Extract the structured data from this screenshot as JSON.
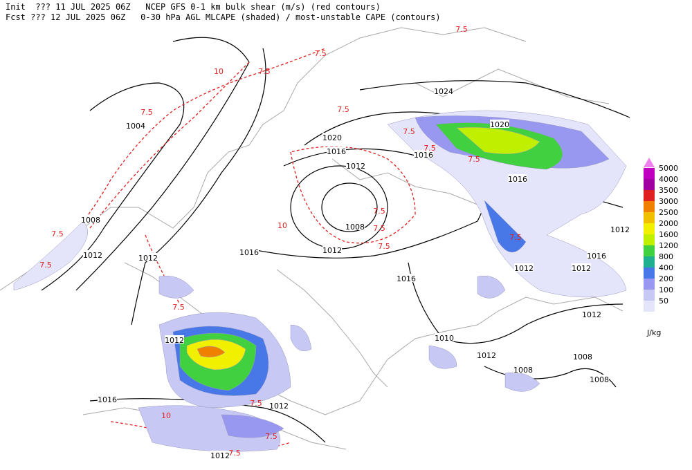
{
  "header": {
    "lines": [
      "Init  ??? 11 JUL 2025 06Z   NCEP GFS 0-1 km bulk shear (m/s) (red contours)",
      "Fcst ??? 12 JUL 2025 06Z   0-30 hPa AGL MLCAPE (shaded) / most-unstable CAPE (contours)"
    ]
  },
  "legend": {
    "levels": [
      "5000",
      "4000",
      "3500",
      "3000",
      "2500",
      "2000",
      "1600",
      "1200",
      "800",
      "400",
      "200",
      "100",
      "50"
    ],
    "colors": [
      "#f080f0",
      "#c000c0",
      "#a000a0",
      "#e02020",
      "#f08000",
      "#f0c000",
      "#f0f000",
      "#c0f000",
      "#40d040",
      "#20b090",
      "#4878e8",
      "#9898f0",
      "#c8c8f4",
      "#e4e4fa"
    ],
    "units": "J/kg"
  },
  "map": {
    "isobar_labels": [
      "1024",
      "1020",
      "1020",
      "1016",
      "1016",
      "1012",
      "1016",
      "1004",
      "1008",
      "1012",
      "1016",
      "1008",
      "1012",
      "1012",
      "1016",
      "1012",
      "1012",
      "1016",
      "1012",
      "1012",
      "1016",
      "1012",
      "1012",
      "1010",
      "1012",
      "1012",
      "1008",
      "1008",
      "1008"
    ],
    "shear_labels": [
      "7.5",
      "7.5",
      "7.5",
      "10",
      "7.5",
      "7.5",
      "7.5",
      "7.5",
      "7.5",
      "10",
      "7.5",
      "7.5",
      "7.5",
      "10",
      "7.5",
      "7.5",
      "7.5",
      "7.5",
      "7.5",
      "7.5",
      "7.5"
    ]
  }
}
